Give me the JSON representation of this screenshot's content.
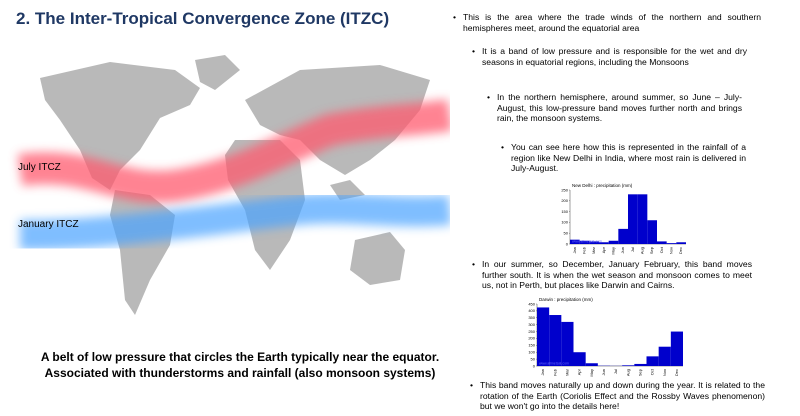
{
  "title": "2. The Inter-Tropical Convergence Zone (ITZC)",
  "map_labels": {
    "july": "July ITCZ",
    "january": "January ITCZ"
  },
  "caption": [
    "A belt of low pressure that circles the Earth typically near the equator.",
    "Associated with thunderstorms and rainfall (also monsoon systems)"
  ],
  "bullets": [
    "This is the area where the trade winds of the northern and southern hemispheres meet, around the equatorial area",
    "It is a band of low pressure and is responsible for the wet and dry seasons in equatorial regions, including the Monsoons",
    "In the northern hemisphere, around summer, so June – July-August, this low-pressure band moves further north and brings rain, the monsoon systems.",
    "You can see here how this is represented in the rainfall of a region like New Delhi in India, where most rain is delivered in July-August.",
    "In our summer, so December, January February, this band moves further south. It is when the wet season and monsoon comes to meet us, not in Perth, but places like Darwin and Cairns.",
    "This band moves naturally up and down during the year. It is related to the rotation of the Earth (Coriolis Effect and the Rossby Waves phenomenon) but we won't go into the details here!"
  ],
  "chart_data": [
    {
      "type": "bar",
      "title": "New Delhi : precipitation (mm)",
      "source": "www.allmetsat.com",
      "categories": [
        "Jan",
        "Feb",
        "Mar",
        "Apr",
        "May",
        "Jun",
        "Jul",
        "Aug",
        "Sep",
        "Oct",
        "Nov",
        "Dec"
      ],
      "values": [
        20,
        15,
        12,
        8,
        15,
        70,
        230,
        230,
        110,
        12,
        4,
        8
      ],
      "color": "#0000cc",
      "ylim": [
        0,
        250
      ],
      "yticks": [
        0,
        50,
        100,
        150,
        200,
        250
      ]
    },
    {
      "type": "bar",
      "title": "Darwin : precipitation (mm)",
      "source": "www.allmetsat.com",
      "categories": [
        "Jan",
        "Feb",
        "Mar",
        "Apr",
        "May",
        "Jun",
        "Jul",
        "Aug",
        "Sep",
        "Oct",
        "Nov",
        "Dec"
      ],
      "values": [
        425,
        370,
        320,
        100,
        20,
        2,
        1,
        5,
        15,
        70,
        140,
        250
      ],
      "color": "#0000cc",
      "ylim": [
        0,
        450
      ],
      "yticks": [
        0,
        50,
        100,
        150,
        200,
        250,
        300,
        350,
        400,
        450
      ]
    }
  ]
}
